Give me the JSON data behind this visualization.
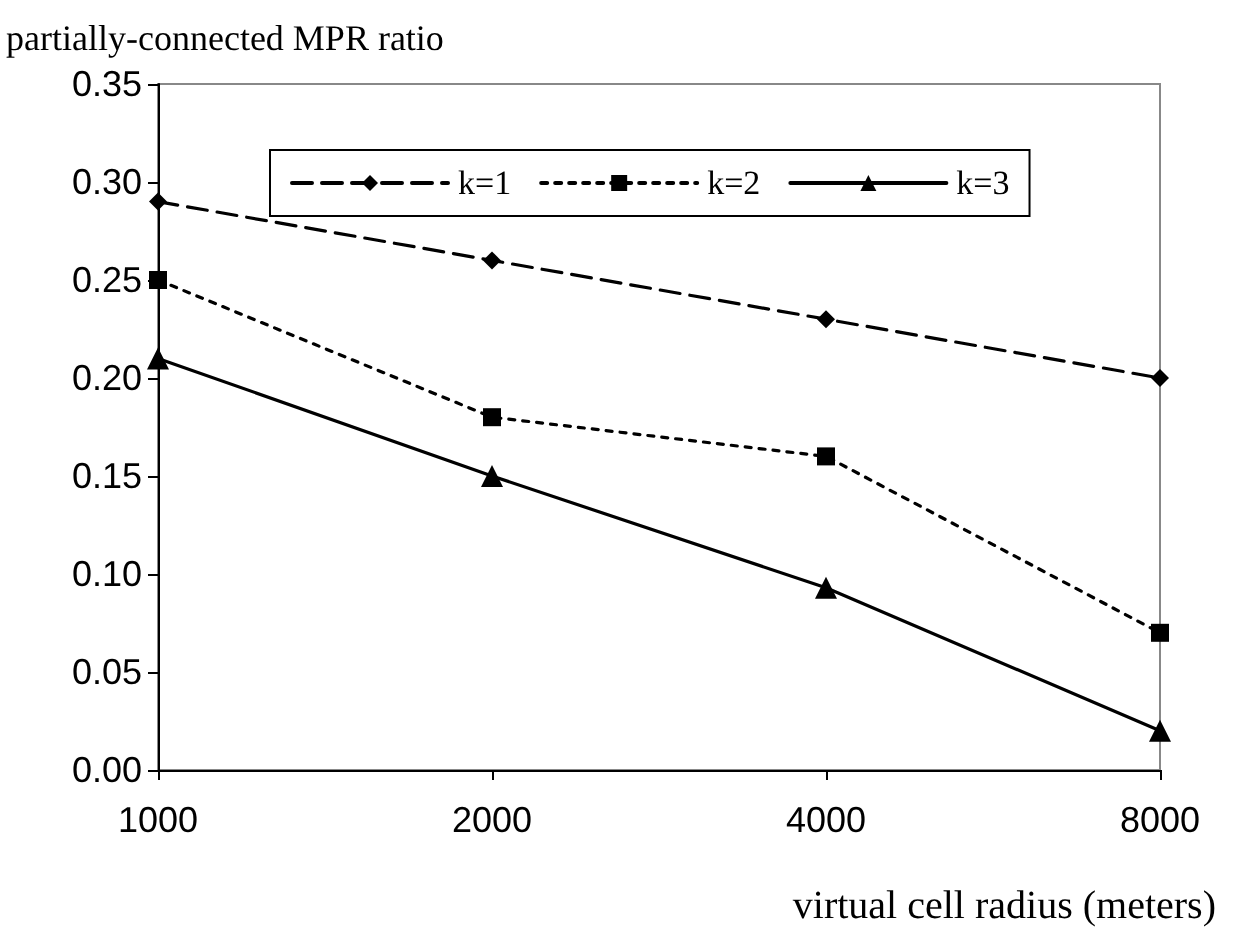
{
  "chart_data": {
    "type": "line",
    "ylabel": "partially-connected MPR ratio",
    "xlabel": "virtual cell radius (meters)",
    "categories": [
      "1000",
      "2000",
      "4000",
      "8000"
    ],
    "series": [
      {
        "name": "k=1",
        "color": "#000000",
        "values": [
          0.29,
          0.26,
          0.23,
          0.2
        ],
        "marker": "diamond",
        "line_style": "dashed"
      },
      {
        "name": "k=2",
        "color": "#000000",
        "values": [
          0.25,
          0.18,
          0.16,
          0.07
        ],
        "marker": "square",
        "line_style": "dotted"
      },
      {
        "name": "k=3",
        "color": "#000000",
        "values": [
          0.21,
          0.15,
          0.093,
          0.02
        ],
        "marker": "triangle",
        "line_style": "solid"
      }
    ],
    "ylim": [
      0,
      0.35
    ],
    "yticks": [
      {
        "value": 0,
        "label": "0.00"
      },
      {
        "value": 0.05,
        "label": "0.05"
      },
      {
        "value": 0.1,
        "label": "0.10"
      },
      {
        "value": 0.15,
        "label": "0.15"
      },
      {
        "value": 0.2,
        "label": "0.20"
      },
      {
        "value": 0.25,
        "label": "0.25"
      },
      {
        "value": 0.3,
        "label": "0.30"
      },
      {
        "value": 0.35,
        "label": "0.35"
      }
    ],
    "grid": false,
    "legend": "top"
  }
}
